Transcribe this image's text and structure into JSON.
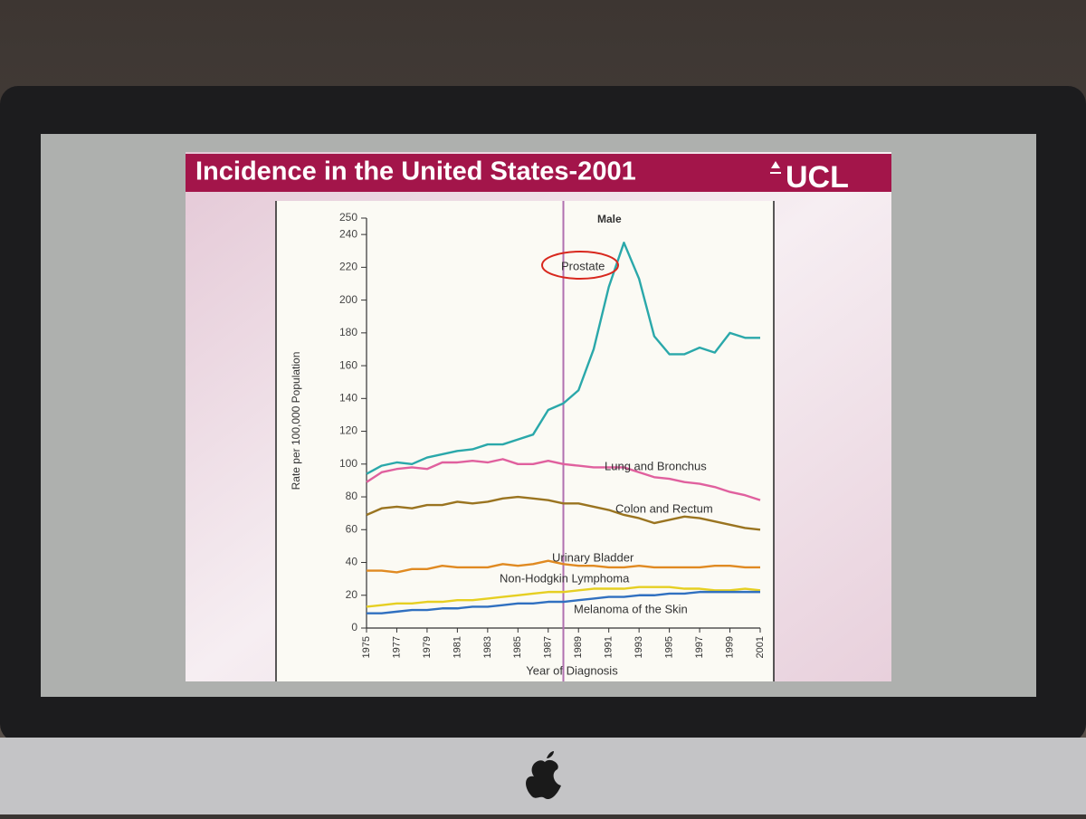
{
  "chart_data": {
    "type": "line",
    "title": "Incidence in the United States-2001",
    "logo": "UCL",
    "subtitle": "Male",
    "y_label": "Rate per 100,000 Population",
    "x_label": "Year of Diagnosis",
    "x": [
      1975,
      1976,
      1977,
      1978,
      1979,
      1980,
      1981,
      1982,
      1983,
      1984,
      1985,
      1986,
      1987,
      1988,
      1989,
      1990,
      1991,
      1992,
      1993,
      1994,
      1995,
      1996,
      1997,
      1998,
      1999,
      2000,
      2001
    ],
    "xlim": [
      1975,
      2001
    ],
    "xticks": [
      1975,
      1977,
      1979,
      1981,
      1983,
      1985,
      1987,
      1989,
      1991,
      1993,
      1995,
      1997,
      1999,
      2001
    ],
    "ylim": [
      0,
      250
    ],
    "yticks": [
      0,
      20,
      40,
      60,
      80,
      100,
      120,
      140,
      160,
      180,
      200,
      220,
      240,
      250
    ],
    "vline": 1988,
    "series": [
      {
        "name": "Prostate",
        "color": "#2aa8aa",
        "values": [
          94,
          99,
          101,
          100,
          104,
          106,
          108,
          109,
          112,
          112,
          115,
          118,
          133,
          137,
          145,
          170,
          208,
          235,
          213,
          178,
          167,
          167,
          171,
          168,
          180,
          177,
          177
        ]
      },
      {
        "name": "Lung and Bronchus",
        "color": "#e0609e",
        "values": [
          89,
          95,
          97,
          98,
          97,
          101,
          101,
          102,
          101,
          103,
          100,
          100,
          102,
          100,
          99,
          98,
          98,
          98,
          95,
          92,
          91,
          89,
          88,
          86,
          83,
          81,
          78
        ]
      },
      {
        "name": "Colon and Rectum",
        "color": "#9a7420",
        "values": [
          69,
          73,
          74,
          73,
          75,
          75,
          77,
          76,
          77,
          79,
          80,
          79,
          78,
          76,
          76,
          74,
          72,
          69,
          67,
          64,
          66,
          68,
          67,
          65,
          63,
          61,
          60
        ]
      },
      {
        "name": "Urinary Bladder",
        "color": "#e08a22",
        "values": [
          35,
          35,
          34,
          36,
          36,
          38,
          37,
          37,
          37,
          39,
          38,
          39,
          41,
          39,
          38,
          38,
          37,
          37,
          38,
          37,
          37,
          37,
          37,
          38,
          38,
          37,
          37
        ]
      },
      {
        "name": "Non-Hodgkin Lymphoma",
        "color": "#e6cf22",
        "values": [
          13,
          14,
          15,
          15,
          16,
          16,
          17,
          17,
          18,
          19,
          20,
          21,
          22,
          22,
          23,
          24,
          24,
          24,
          25,
          25,
          25,
          24,
          24,
          23,
          23,
          24,
          23
        ]
      },
      {
        "name": "Melanoma of the Skin",
        "color": "#3070c0",
        "values": [
          9,
          9,
          10,
          11,
          11,
          12,
          12,
          13,
          13,
          14,
          15,
          15,
          16,
          16,
          17,
          18,
          19,
          19,
          20,
          20,
          21,
          21,
          22,
          22,
          22,
          22,
          22
        ]
      }
    ]
  }
}
